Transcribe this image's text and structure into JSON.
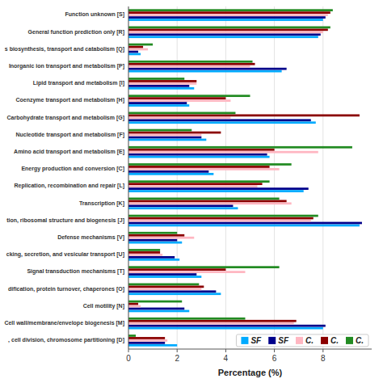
{
  "chart_data": {
    "type": "bar",
    "orientation": "horizontal",
    "xlabel": "Percentage (%)",
    "categories": [
      "Function unknown [S]",
      "General function prediction only [R]",
      "s biosynthesis, transport and catabolism [Q]",
      "Inorganic ion transport and metabolism [P]",
      "Lipid transport and metabolism [I]",
      "Coenzyme transport and metabolism [H]",
      "Carbohydrate transport and metabolism [G]",
      "Nucleotide transport and metabolism [F]",
      "Amino acid transport and metabolism [E]",
      "Energy production and conversion [C]",
      "Replication, recombination and repair [L]",
      "Transcription [K]",
      "tion, ribosomal structure and biogenesis [J]",
      "Defense mechanisms [V]",
      "cking, secretion, and vesicular transport [U]",
      "Signal transduction mechanisms [T]",
      "dification, protein turnover, chaperones [O]",
      "Cell motility [N]",
      "Cell wall/membrane/envelope biogenesis [M]",
      ", cell division, chromosome partitioning [D]"
    ],
    "series": [
      {
        "name": "SF",
        "color": "#00AAFF",
        "values": [
          8.0,
          7.8,
          0.5,
          6.3,
          2.7,
          2.5,
          7.7,
          3.2,
          5.8,
          3.5,
          7.2,
          4.5,
          9.5,
          2.2,
          2.1,
          3.0,
          3.8,
          2.5,
          8.0,
          2.0
        ]
      },
      {
        "name": "SF",
        "color": "#00008B",
        "values": [
          8.1,
          7.9,
          0.4,
          6.5,
          2.5,
          2.4,
          7.5,
          3.0,
          5.7,
          3.3,
          7.4,
          4.3,
          9.6,
          2.0,
          1.9,
          2.8,
          3.6,
          2.3,
          8.1,
          1.5
        ]
      },
      {
        "name": "C.",
        "color": "#FFB6C1",
        "values": [
          8.2,
          8.0,
          0.8,
          5.0,
          2.8,
          4.2,
          4.2,
          3.0,
          7.8,
          6.2,
          5.3,
          6.7,
          7.5,
          2.7,
          1.4,
          4.8,
          3.0,
          0.5,
          6.8,
          1.6
        ]
      },
      {
        "name": "C.",
        "color": "#8B0000",
        "values": [
          8.3,
          8.2,
          0.6,
          5.2,
          2.8,
          4.0,
          9.5,
          3.8,
          6.0,
          5.8,
          5.5,
          6.5,
          7.6,
          2.3,
          1.3,
          4.0,
          3.1,
          0.4,
          6.9,
          1.5
        ]
      },
      {
        "name": "C.",
        "color": "#228B22",
        "values": [
          8.4,
          8.3,
          1.0,
          5.1,
          2.3,
          5.0,
          4.4,
          2.6,
          9.2,
          6.7,
          5.8,
          6.2,
          7.8,
          2.0,
          1.3,
          6.2,
          2.9,
          2.2,
          4.8,
          0.3
        ]
      }
    ],
    "xlim": [
      0,
      10
    ],
    "xticks": [
      0,
      2,
      4,
      6,
      8
    ],
    "grid": true,
    "legend": "lower right"
  }
}
